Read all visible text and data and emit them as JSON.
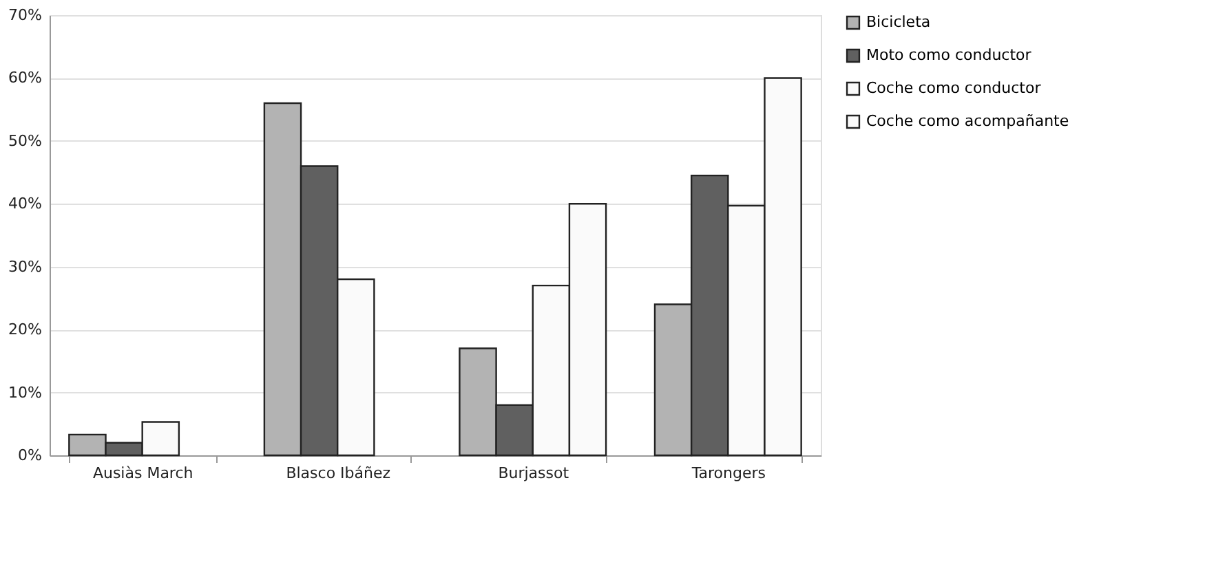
{
  "chart_data": {
    "type": "bar",
    "categories": [
      "Ausiàs March",
      "Blasco Ibáñez",
      "Burjassot",
      "Tarongers"
    ],
    "series": [
      {
        "name": "Bicicleta",
        "color": "#b3b3b3",
        "values": [
          3.3,
          56,
          17,
          24
        ]
      },
      {
        "name": "Moto como conductor",
        "color": "#606060",
        "values": [
          2,
          46,
          8,
          44.5
        ]
      },
      {
        "name": "Coche como conductor",
        "color": "#fafafa",
        "values": [
          5.3,
          28,
          27,
          39.7
        ]
      },
      {
        "name": "Coche como acompañante",
        "color": "#fafafa",
        "values": [
          null,
          null,
          40,
          60
        ]
      }
    ],
    "ylim": [
      0,
      70
    ],
    "yticks": [
      {
        "value": 0,
        "label": "0%"
      },
      {
        "value": 10,
        "label": "10%"
      },
      {
        "value": 20,
        "label": "20%"
      },
      {
        "value": 30,
        "label": "30%"
      },
      {
        "value": 40,
        "label": "40%"
      },
      {
        "value": 50,
        "label": "50%"
      },
      {
        "value": 60,
        "label": "60%"
      },
      {
        "value": 70,
        "label": "70%"
      }
    ],
    "grid": "y",
    "legend": "right"
  }
}
